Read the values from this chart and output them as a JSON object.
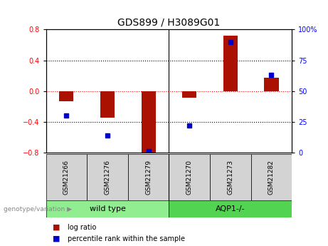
{
  "title": "GDS899 / H3089G01",
  "samples": [
    "GSM21266",
    "GSM21276",
    "GSM21279",
    "GSM21270",
    "GSM21273",
    "GSM21282"
  ],
  "log_ratio": [
    -0.13,
    -0.35,
    -0.82,
    -0.09,
    0.72,
    0.17
  ],
  "percentile_rank": [
    30,
    14,
    1,
    22,
    90,
    63
  ],
  "groups": [
    {
      "label": "wild type",
      "indices": [
        0,
        1,
        2
      ],
      "color": "#90ee90"
    },
    {
      "label": "AQP1-/-",
      "indices": [
        3,
        4,
        5
      ],
      "color": "#52d452"
    }
  ],
  "bar_color": "#aa1100",
  "dot_color": "#0000cc",
  "ylim_left": [
    -0.8,
    0.8
  ],
  "ylim_right": [
    0,
    100
  ],
  "yticks_left": [
    -0.8,
    -0.4,
    0.0,
    0.4,
    0.8
  ],
  "yticks_right": [
    0,
    25,
    50,
    75,
    100
  ],
  "hlines": [
    -0.4,
    0.0,
    0.4
  ],
  "hline_colors": [
    "black",
    "red",
    "black"
  ],
  "hline_styles": [
    "dotted",
    "dotted",
    "dotted"
  ],
  "bg_color": "#ffffff",
  "legend_items": [
    {
      "label": "log ratio",
      "color": "#aa1100"
    },
    {
      "label": "percentile rank within the sample",
      "color": "#0000cc"
    }
  ],
  "bar_width": 0.35
}
